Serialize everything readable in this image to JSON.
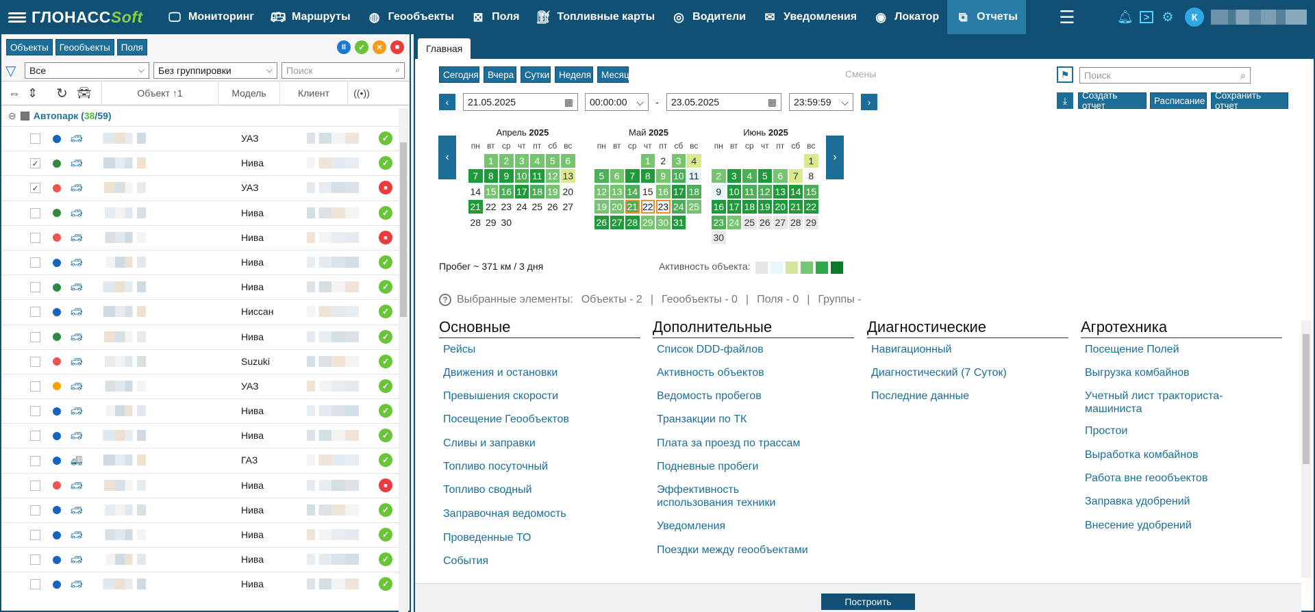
{
  "app": {
    "logo_main": "ГЛОНАСС",
    "logo_soft": "Soft"
  },
  "nav": [
    {
      "label": "Мониторинг",
      "icon": "monitor-icon"
    },
    {
      "label": "Маршруты",
      "icon": "bus-icon"
    },
    {
      "label": "Геообъекты",
      "icon": "globe-icon"
    },
    {
      "label": "Поля",
      "icon": "field-icon"
    },
    {
      "label": "Топливные карты",
      "icon": "fuel-card-icon"
    },
    {
      "label": "Водители",
      "icon": "steering-wheel-icon"
    },
    {
      "label": "Уведомления",
      "icon": "mail-icon"
    },
    {
      "label": "Локатор",
      "icon": "locator-icon"
    },
    {
      "label": "Отчеты",
      "icon": "reports-icon"
    }
  ],
  "user": {
    "initial": "К"
  },
  "left": {
    "tabs": [
      "Объекты",
      "Геообъекты",
      "Поля"
    ],
    "filter": "Все",
    "grouping": "Без группировки",
    "search_placeholder": "Поиск",
    "columns": {
      "object": "Объект ↑1",
      "model": "Модель",
      "client": "Клиент"
    },
    "group": {
      "name": "Автопарк (",
      "count_a": "38",
      "sep": "/",
      "count_b": "59",
      ")": ")"
    },
    "rows": [
      {
        "checked": false,
        "dot": "#1565c0",
        "model": "УАЗ",
        "status": "ok"
      },
      {
        "checked": true,
        "dot": "#2e8b3e",
        "model": "Нива",
        "status": "ok"
      },
      {
        "checked": true,
        "dot": "#ef5350",
        "model": "УАЗ",
        "status": "lock"
      },
      {
        "checked": false,
        "dot": "#2e8b3e",
        "model": "Нива",
        "status": "ok"
      },
      {
        "checked": false,
        "dot": "#ef5350",
        "model": "Нива",
        "status": "lock"
      },
      {
        "checked": false,
        "dot": "#1565c0",
        "model": "Нива",
        "status": "ok"
      },
      {
        "checked": false,
        "dot": "#2e8b3e",
        "model": "Нива",
        "status": "ok"
      },
      {
        "checked": false,
        "dot": "#1565c0",
        "model": "Ниссан",
        "status": "ok"
      },
      {
        "checked": false,
        "dot": "#2e8b3e",
        "model": "Нива",
        "status": "ok"
      },
      {
        "checked": false,
        "dot": "#ef5350",
        "model": "Suzuki",
        "status": "ok"
      },
      {
        "checked": false,
        "dot": "#f4a300",
        "model": "УАЗ",
        "status": "ok"
      },
      {
        "checked": false,
        "dot": "#1565c0",
        "model": "Нива",
        "status": "ok"
      },
      {
        "checked": false,
        "dot": "#1565c0",
        "model": "Нива",
        "status": "ok"
      },
      {
        "checked": false,
        "dot": "#1565c0",
        "model": "ГАЗ",
        "status": "ok"
      },
      {
        "checked": false,
        "dot": "#ef5350",
        "model": "Нива",
        "status": "lock"
      },
      {
        "checked": false,
        "dot": "#1565c0",
        "model": "Нива",
        "status": "ok"
      },
      {
        "checked": false,
        "dot": "#1565c0",
        "model": "Нива",
        "status": "ok"
      },
      {
        "checked": false,
        "dot": "#1565c0",
        "model": "Нива",
        "status": "ok"
      },
      {
        "checked": false,
        "dot": "#1565c0",
        "model": "Нива",
        "status": "ok"
      }
    ]
  },
  "right": {
    "tab": "Главная",
    "quick": [
      "Сегодня",
      "Вчера",
      "Сутки",
      "Неделя",
      "Месяц"
    ],
    "shifts": "Смены",
    "date_from": "21.05.2025",
    "time_from": "00:00:00",
    "dash": "-",
    "date_to": "23.05.2025",
    "time_to": "23:59:59",
    "search_placeholder": "Поиск",
    "actions": [
      "Создать отчет",
      "Расписание",
      "Сохранить отчет"
    ],
    "weekdays": [
      "пн",
      "вт",
      "ср",
      "чт",
      "пт",
      "сб",
      "вс"
    ],
    "calendars": [
      {
        "month": "Апрель",
        "year": "2025",
        "offset": 1,
        "days": [
          "1",
          "2",
          "3",
          "4",
          "5",
          "6",
          "7",
          "8",
          "9",
          "10",
          "11",
          "12",
          "13",
          "14",
          "15",
          "16",
          "17",
          "18",
          "19",
          "20",
          "21",
          "22",
          "23",
          "24",
          "25",
          "26",
          "27",
          "28",
          "29",
          "30"
        ],
        "levels": [
          3,
          3,
          3,
          3,
          3,
          3,
          5,
          5,
          5,
          4,
          5,
          3,
          1,
          0,
          3,
          4,
          5,
          4,
          3,
          0,
          5,
          0,
          0,
          0,
          0,
          0,
          0,
          0,
          0,
          0
        ]
      },
      {
        "month": "Май",
        "year": "2025",
        "offset": 3,
        "days": [
          "1",
          "2",
          "3",
          "4",
          "5",
          "6",
          "7",
          "8",
          "9",
          "10",
          "11",
          "12",
          "13",
          "14",
          "15",
          "16",
          "17",
          "18",
          "19",
          "20",
          "21",
          "22",
          "23",
          "24",
          "25",
          "26",
          "27",
          "28",
          "29",
          "30",
          "31"
        ],
        "levels": [
          3,
          0,
          3,
          1,
          4,
          3,
          5,
          5,
          3,
          4,
          2,
          3,
          3,
          4,
          0,
          3,
          5,
          4,
          3,
          3,
          4,
          2,
          2,
          4,
          3,
          5,
          5,
          5,
          3,
          3,
          5
        ]
      },
      {
        "month": "Июнь",
        "year": "2025",
        "offset": 6,
        "days": [
          "1",
          "2",
          "3",
          "4",
          "5",
          "6",
          "7",
          "8",
          "9",
          "10",
          "11",
          "12",
          "13",
          "14",
          "15",
          "16",
          "17",
          "18",
          "19",
          "20",
          "21",
          "22",
          "23",
          "24",
          "25",
          "26",
          "27",
          "28",
          "29",
          "30"
        ],
        "levels": [
          1,
          3,
          5,
          4,
          5,
          3,
          1,
          0,
          2,
          5,
          4,
          4,
          5,
          5,
          4,
          5,
          5,
          5,
          5,
          5,
          5,
          5,
          4,
          3,
          9,
          9,
          9,
          9,
          9,
          9
        ]
      }
    ],
    "selected_days": [
      "21",
      "22",
      "23"
    ],
    "mileage": "Пробег ~ 371 км / 3 дня",
    "activity_label": "Активность объекта:",
    "activity_colors": [
      "#e6e6e6",
      "#e7f7fb",
      "#d3e59c",
      "#76c878",
      "#2ea848",
      "#0e7a28"
    ],
    "selected": {
      "label": "Выбранные элементы:",
      "objects": "Объекты - 2",
      "geo": "Геообъекты - 0",
      "fields": "Поля - 0",
      "groups": "Группы -",
      "sep": "|"
    },
    "columns": [
      {
        "title": "Основные",
        "items": [
          "Рейсы",
          "Движения и остановки",
          "Превышения скорости",
          "Посещение Геообъектов",
          "Сливы и заправки",
          "Топливо посуточный",
          "Топливо сводный",
          "Заправочная ведомость",
          "Проведенные ТО",
          "События"
        ]
      },
      {
        "title": "Дополнительные",
        "items": [
          "Список DDD-файлов",
          "Активность объектов",
          "Ведомость пробегов",
          "Транзакции по ТК",
          "Плата за проезд по трассам",
          "Подневные пробеги",
          "Эффективность использования техники",
          "Уведомления",
          "Поездки между геообъектами"
        ]
      },
      {
        "title": "Диагностические",
        "items": [
          "Навигационный",
          "Диагностический (7 Суток)",
          "Последние данные"
        ]
      },
      {
        "title": "Агротехника",
        "items": [
          "Посещение Полей",
          "Выгрузка комбайнов",
          "Учетный лист тракториста-машиниста",
          "Простои",
          "Выработка комбайнов",
          "Работа вне геообъектов",
          "Заправка удобрений",
          "Внесение удобрений"
        ]
      }
    ],
    "build": "Построить"
  }
}
